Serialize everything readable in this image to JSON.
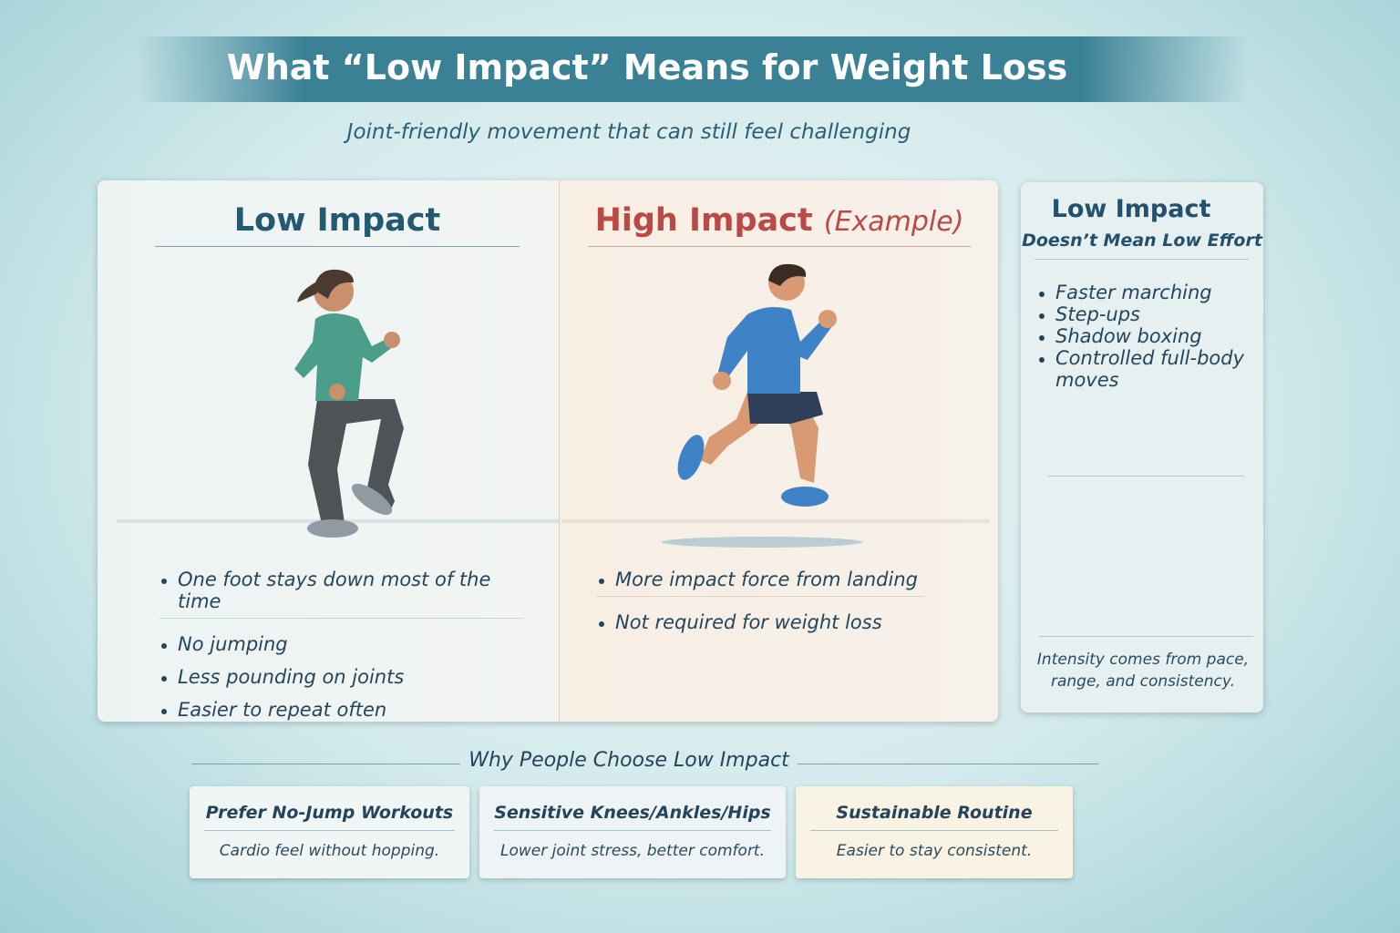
{
  "header": {
    "title": "What “Low Impact” Means for Weight Loss",
    "subtitle": "Joint-friendly movement that can still feel challenging"
  },
  "comparison": {
    "low": {
      "title": "Low Impact",
      "bullets": [
        "One foot stays down most of the time",
        "No jumping",
        "Less pounding on joints",
        "Easier to repeat often"
      ]
    },
    "high": {
      "title": "High Impact",
      "note": "(Example)",
      "bullets": [
        "More impact force from landing",
        "Not required for weight loss"
      ]
    }
  },
  "sidebar": {
    "title": "Low Impact",
    "subtitle": "Doesn’t Mean Low Effort",
    "items": [
      "Faster marching",
      "Step-ups",
      "Shadow boxing",
      "Controlled full-body moves"
    ],
    "footer": "Intensity comes from pace, range, and consistency."
  },
  "reasons": {
    "heading": "Why People Choose Low Impact",
    "cards": [
      {
        "title": "Prefer No-Jump Workouts",
        "text": "Cardio feel without hopping."
      },
      {
        "title": "Sensitive Knees/Ankles/Hips",
        "text": "Lower joint stress, better comfort."
      },
      {
        "title": "Sustainable Routine",
        "text": "Easier to stay consistent."
      }
    ]
  }
}
